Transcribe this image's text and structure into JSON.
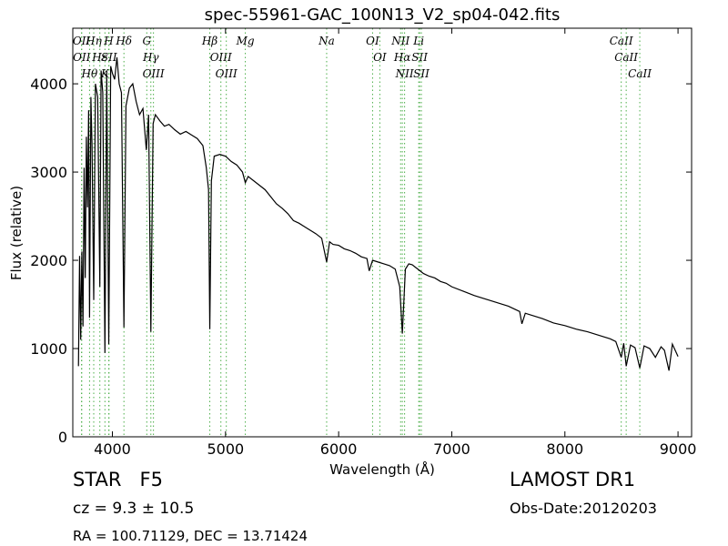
{
  "chart_data": {
    "type": "line",
    "title": "spec-55961-GAC_100N13_V2_sp04-042.fits",
    "x_label": "Wavelength (Å)",
    "y_label": "Flux (relative)",
    "color": "#000000",
    "line_color": "#4daf4a",
    "xlim": [
      3650,
      9120
    ],
    "ylim": [
      0,
      4630
    ],
    "xticks": [
      4000,
      5000,
      6000,
      7000,
      8000,
      9000
    ],
    "yticks": [
      0,
      1000,
      2000,
      3000,
      4000
    ],
    "x": [
      3700,
      3710,
      3720,
      3730,
      3740,
      3750,
      3760,
      3770,
      3780,
      3790,
      3798,
      3810,
      3820,
      3835,
      3850,
      3870,
      3889,
      3900,
      3915,
      3934,
      3950,
      3968,
      3985,
      4000,
      4020,
      4040,
      4060,
      4080,
      4102,
      4120,
      4150,
      4180,
      4210,
      4240,
      4270,
      4300,
      4320,
      4340,
      4360,
      4380,
      4420,
      4460,
      4500,
      4550,
      4600,
      4650,
      4700,
      4750,
      4800,
      4830,
      4850,
      4861,
      4875,
      4900,
      4950,
      5000,
      5050,
      5100,
      5150,
      5175,
      5200,
      5250,
      5300,
      5350,
      5400,
      5450,
      5500,
      5550,
      5600,
      5650,
      5700,
      5750,
      5800,
      5850,
      5894,
      5920,
      5950,
      6000,
      6050,
      6100,
      6150,
      6200,
      6250,
      6270,
      6300,
      6350,
      6400,
      6450,
      6500,
      6540,
      6563,
      6590,
      6620,
      6650,
      6700,
      6750,
      6800,
      6850,
      6900,
      6950,
      7000,
      7100,
      7200,
      7300,
      7400,
      7500,
      7600,
      7620,
      7650,
      7700,
      7800,
      7900,
      8000,
      8100,
      8200,
      8300,
      8400,
      8450,
      8498,
      8520,
      8542,
      8580,
      8620,
      8662,
      8700,
      8750,
      8800,
      8850,
      8880,
      8920,
      8950,
      9000
    ],
    "values": [
      800,
      2050,
      1100,
      2100,
      1250,
      3050,
      1800,
      3400,
      2600,
      3700,
      1350,
      3850,
      3300,
      1550,
      4000,
      3850,
      1700,
      4150,
      3900,
      950,
      4150,
      1050,
      4200,
      4120,
      4050,
      4300,
      4000,
      3900,
      1240,
      3750,
      3950,
      4000,
      3800,
      3650,
      3720,
      3250,
      3650,
      1190,
      3550,
      3650,
      3580,
      3520,
      3540,
      3480,
      3430,
      3460,
      3420,
      3380,
      3300,
      3050,
      2800,
      1220,
      2900,
      3180,
      3200,
      3180,
      3120,
      3080,
      3000,
      2880,
      2950,
      2900,
      2850,
      2800,
      2720,
      2640,
      2590,
      2530,
      2450,
      2420,
      2380,
      2340,
      2300,
      2250,
      1980,
      2210,
      2180,
      2170,
      2130,
      2110,
      2080,
      2040,
      2020,
      1880,
      2000,
      1980,
      1960,
      1940,
      1900,
      1700,
      1170,
      1900,
      1960,
      1950,
      1900,
      1850,
      1820,
      1800,
      1760,
      1740,
      1700,
      1650,
      1600,
      1560,
      1520,
      1480,
      1420,
      1280,
      1400,
      1380,
      1340,
      1290,
      1260,
      1220,
      1190,
      1150,
      1110,
      1080,
      900,
      1060,
      800,
      1040,
      1010,
      780,
      1030,
      1000,
      900,
      1020,
      980,
      750,
      1050,
      910
    ],
    "lines": [
      {
        "wavelength": 3727,
        "label": "OII"
      },
      {
        "wavelength": 3729,
        "label": "OII"
      },
      {
        "wavelength": 3798,
        "label": "Hθ"
      },
      {
        "wavelength": 3835,
        "label": "Hη"
      },
      {
        "wavelength": 3889,
        "label": "Hε"
      },
      {
        "wavelength": 3934,
        "label": "K"
      },
      {
        "wavelength": 3968,
        "label": "H"
      },
      {
        "wavelength": 3970,
        "label": "SII"
      },
      {
        "wavelength": 4102,
        "label": "Hδ"
      },
      {
        "wavelength": 4304,
        "label": "G"
      },
      {
        "wavelength": 4340,
        "label": "Hγ"
      },
      {
        "wavelength": 4363,
        "label": "OIII"
      },
      {
        "wavelength": 4861,
        "label": "Hβ"
      },
      {
        "wavelength": 4959,
        "label": "OIII"
      },
      {
        "wavelength": 5007,
        "label": "OIII"
      },
      {
        "wavelength": 5175,
        "label": "Mg"
      },
      {
        "wavelength": 5894,
        "label": "Na"
      },
      {
        "wavelength": 6300,
        "label": "OI"
      },
      {
        "wavelength": 6364,
        "label": "OI"
      },
      {
        "wavelength": 6548,
        "label": "NII"
      },
      {
        "wavelength": 6563,
        "label": "Hα"
      },
      {
        "wavelength": 6583,
        "label": "NII"
      },
      {
        "wavelength": 6708,
        "label": "Li"
      },
      {
        "wavelength": 6716,
        "label": "SII"
      },
      {
        "wavelength": 6731,
        "label": "SII"
      },
      {
        "wavelength": 8498,
        "label": "CaII"
      },
      {
        "wavelength": 8542,
        "label": "CaII"
      },
      {
        "wavelength": 8662,
        "label": "CaII"
      }
    ],
    "annotations": [
      "STAR   F5",
      "LAMOST DR1",
      "cz = 9.3 ± 10.5",
      "Obs-Date:20120203",
      "RA = 100.71129, DEC = 13.71424"
    ]
  }
}
